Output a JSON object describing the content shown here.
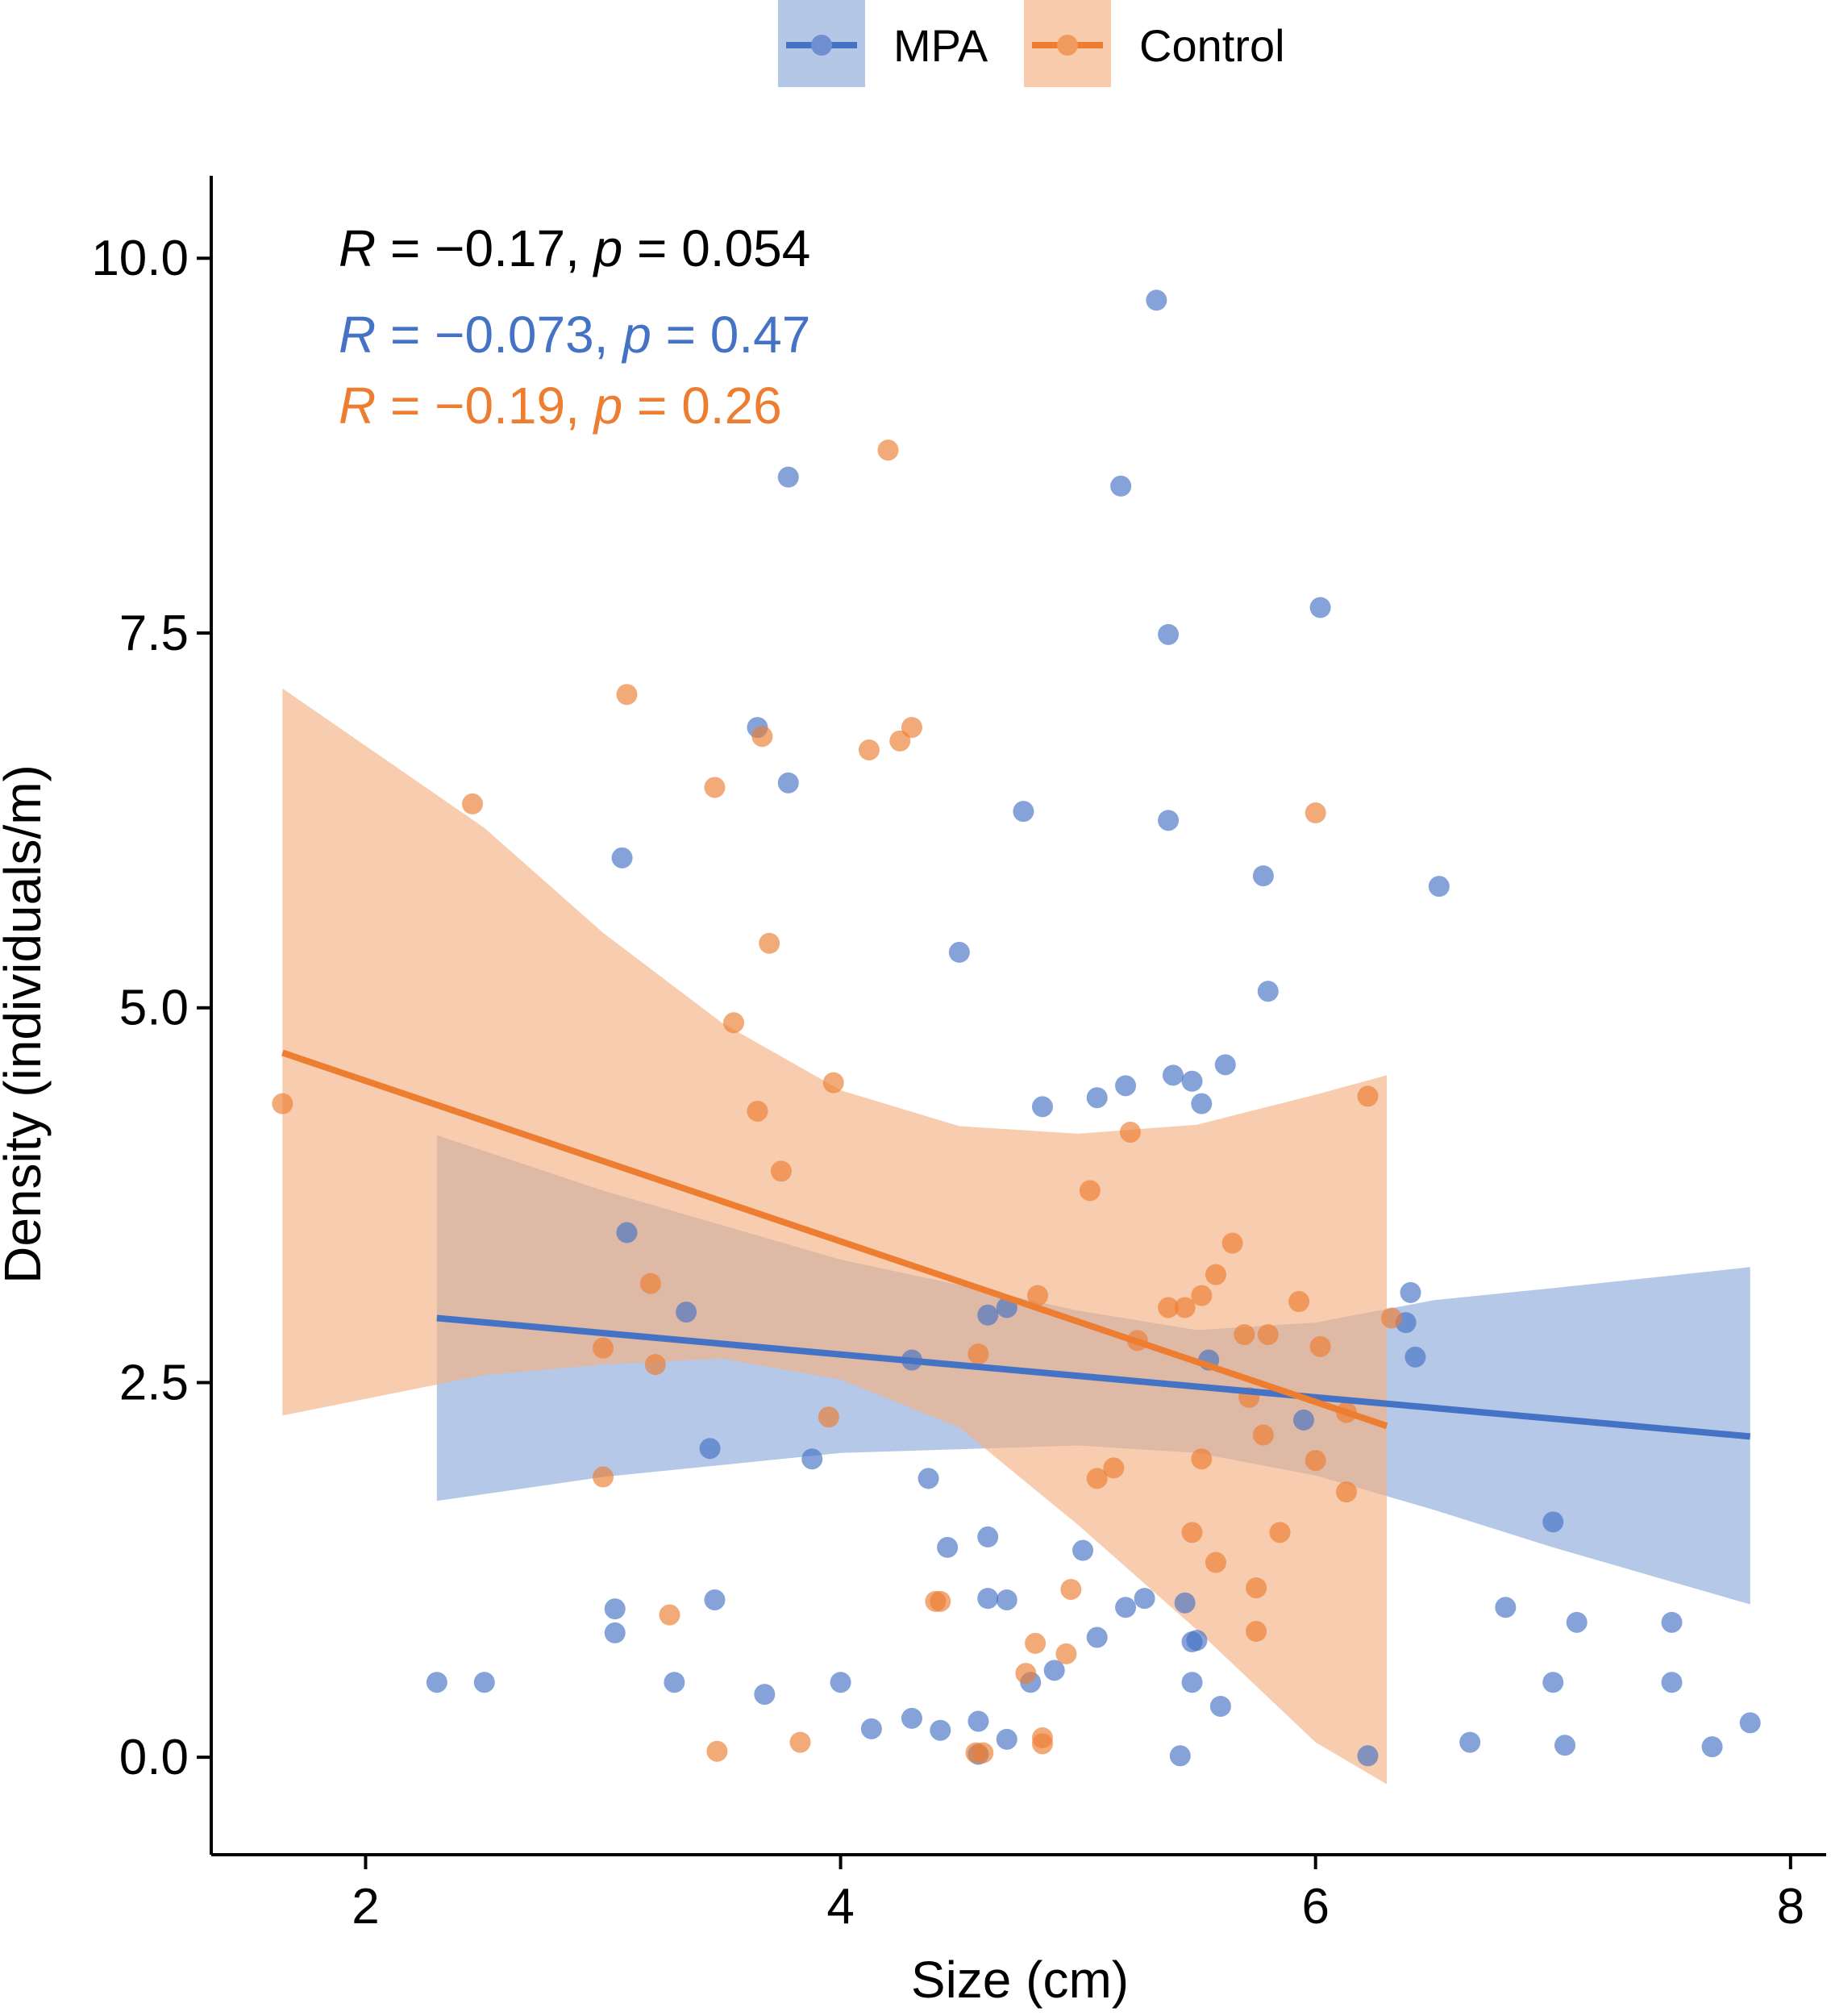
{
  "chart_data": {
    "type": "scatter",
    "xlabel": "Size (cm)",
    "ylabel": "Density (individuals/m)",
    "xlim": [
      1.35,
      8.15
    ],
    "ylim": [
      -0.65,
      10.55
    ],
    "xticks": [
      2,
      4,
      6,
      8
    ],
    "xtick_labels": [
      "2",
      "4",
      "6",
      "8"
    ],
    "yticks": [
      0,
      2.5,
      5,
      7.5,
      10
    ],
    "ytick_labels": [
      "0.0",
      "2.5",
      "5.0",
      "7.5",
      "10.0"
    ],
    "grid": false,
    "legend": {
      "placement": "top",
      "entries": [
        "MPA",
        "Control"
      ]
    },
    "colors": {
      "MPA": "#4472C4",
      "MPA_band": "#8faadc",
      "Control": "#ED7D31",
      "Control_band": "#f4b183",
      "overall": "#000000"
    },
    "annotations": [
      {
        "group": "overall",
        "r_label": "R",
        "r_text": " = −0.17, ",
        "p_label": "p",
        "p_text": " = 0.054"
      },
      {
        "group": "MPA",
        "r_label": "R",
        "r_text": " = −0.073, ",
        "p_label": "p",
        "p_text": " = 0.47"
      },
      {
        "group": "Control",
        "r_label": "R",
        "r_text": " = −0.19, ",
        "p_label": "p",
        "p_text": " = 0.26"
      }
    ],
    "series": [
      {
        "name": "MPA",
        "points": [
          [
            5.33,
            9.72
          ],
          [
            3.78,
            8.54
          ],
          [
            5.18,
            8.48
          ],
          [
            6.02,
            7.67
          ],
          [
            5.38,
            7.49
          ],
          [
            3.65,
            6.87
          ],
          [
            3.78,
            6.5
          ],
          [
            4.77,
            6.31
          ],
          [
            5.38,
            6.25
          ],
          [
            3.08,
            6.0
          ],
          [
            5.78,
            5.88
          ],
          [
            6.52,
            5.81
          ],
          [
            4.5,
            5.37
          ],
          [
            5.8,
            5.11
          ],
          [
            5.62,
            4.62
          ],
          [
            5.4,
            4.55
          ],
          [
            5.48,
            4.51
          ],
          [
            5.2,
            4.48
          ],
          [
            5.08,
            4.4
          ],
          [
            4.85,
            4.34
          ],
          [
            5.52,
            4.36
          ],
          [
            3.1,
            3.5
          ],
          [
            3.35,
            2.97
          ],
          [
            4.62,
            2.95
          ],
          [
            4.7,
            3.0
          ],
          [
            6.4,
            3.1
          ],
          [
            6.38,
            2.9
          ],
          [
            6.42,
            2.67
          ],
          [
            5.55,
            2.65
          ],
          [
            4.3,
            2.65
          ],
          [
            5.95,
            2.25
          ],
          [
            3.45,
            2.06
          ],
          [
            3.88,
            1.99
          ],
          [
            4.37,
            1.86
          ],
          [
            7.0,
            1.57
          ],
          [
            4.62,
            1.47
          ],
          [
            4.45,
            1.4
          ],
          [
            5.02,
            1.38
          ],
          [
            4.62,
            1.06
          ],
          [
            4.7,
            1.05
          ],
          [
            5.28,
            1.06
          ],
          [
            5.2,
            1.0
          ],
          [
            5.45,
            1.03
          ],
          [
            3.05,
            0.99
          ],
          [
            3.47,
            1.05
          ],
          [
            6.8,
            1.0
          ],
          [
            7.1,
            0.9
          ],
          [
            7.5,
            0.9
          ],
          [
            3.05,
            0.83
          ],
          [
            5.08,
            0.8
          ],
          [
            5.5,
            0.78
          ],
          [
            5.48,
            0.77
          ],
          [
            4.9,
            0.58
          ],
          [
            4.8,
            0.5
          ],
          [
            2.3,
            0.5
          ],
          [
            2.5,
            0.5
          ],
          [
            3.3,
            0.5
          ],
          [
            4.0,
            0.5
          ],
          [
            5.48,
            0.5
          ],
          [
            7.0,
            0.5
          ],
          [
            7.5,
            0.5
          ],
          [
            3.68,
            0.42
          ],
          [
            5.6,
            0.34
          ],
          [
            4.3,
            0.26
          ],
          [
            4.58,
            0.24
          ],
          [
            7.83,
            0.23
          ],
          [
            4.13,
            0.19
          ],
          [
            4.42,
            0.18
          ],
          [
            4.7,
            0.12
          ],
          [
            6.65,
            0.1
          ],
          [
            7.05,
            0.08
          ],
          [
            7.67,
            0.07
          ],
          [
            4.58,
            0.02
          ],
          [
            5.43,
            0.01
          ],
          [
            6.22,
            0.01
          ]
        ]
      },
      {
        "name": "Control",
        "points": [
          [
            4.2,
            8.72
          ],
          [
            3.1,
            7.09
          ],
          [
            4.3,
            6.87
          ],
          [
            3.67,
            6.81
          ],
          [
            4.25,
            6.78
          ],
          [
            4.12,
            6.72
          ],
          [
            3.47,
            6.47
          ],
          [
            2.45,
            6.36
          ],
          [
            6.0,
            6.3
          ],
          [
            3.7,
            5.43
          ],
          [
            3.55,
            4.9
          ],
          [
            3.97,
            4.5
          ],
          [
            1.65,
            4.36
          ],
          [
            6.22,
            4.41
          ],
          [
            3.65,
            4.31
          ],
          [
            5.22,
            4.17
          ],
          [
            3.75,
            3.91
          ],
          [
            5.05,
            3.78
          ],
          [
            5.65,
            3.43
          ],
          [
            5.58,
            3.22
          ],
          [
            3.2,
            3.16
          ],
          [
            5.52,
            3.08
          ],
          [
            4.83,
            3.08
          ],
          [
            5.93,
            3.04
          ],
          [
            5.38,
            3.0
          ],
          [
            5.45,
            3.0
          ],
          [
            6.32,
            2.93
          ],
          [
            5.7,
            2.82
          ],
          [
            5.8,
            2.82
          ],
          [
            5.25,
            2.78
          ],
          [
            6.02,
            2.74
          ],
          [
            3.0,
            2.73
          ],
          [
            4.58,
            2.69
          ],
          [
            3.22,
            2.62
          ],
          [
            5.72,
            2.4
          ],
          [
            6.13,
            2.3
          ],
          [
            3.95,
            2.27
          ],
          [
            5.78,
            2.15
          ],
          [
            5.52,
            1.99
          ],
          [
            6.0,
            1.98
          ],
          [
            5.15,
            1.93
          ],
          [
            5.08,
            1.86
          ],
          [
            3.0,
            1.87
          ],
          [
            6.13,
            1.77
          ],
          [
            5.48,
            1.5
          ],
          [
            5.85,
            1.5
          ],
          [
            5.58,
            1.3
          ],
          [
            4.97,
            1.12
          ],
          [
            5.75,
            1.13
          ],
          [
            4.4,
            1.04
          ],
          [
            4.42,
            1.04
          ],
          [
            3.28,
            0.95
          ],
          [
            5.75,
            0.84
          ],
          [
            4.82,
            0.76
          ],
          [
            4.95,
            0.69
          ],
          [
            4.78,
            0.56
          ],
          [
            4.85,
            0.13
          ],
          [
            4.85,
            0.09
          ],
          [
            3.83,
            0.1
          ],
          [
            3.48,
            0.04
          ],
          [
            4.57,
            0.03
          ],
          [
            4.6,
            0.03
          ]
        ]
      }
    ],
    "fits": [
      {
        "name": "MPA",
        "x_range": [
          2.3,
          7.83
        ],
        "line": [
          [
            2.3,
            2.93
          ],
          [
            7.83,
            2.14
          ]
        ],
        "band_upper": [
          [
            2.3,
            4.15
          ],
          [
            3.0,
            3.78
          ],
          [
            4.0,
            3.32
          ],
          [
            5.0,
            2.98
          ],
          [
            5.5,
            2.85
          ],
          [
            6.0,
            2.9
          ],
          [
            6.5,
            3.05
          ],
          [
            7.0,
            3.13
          ],
          [
            7.83,
            3.27
          ]
        ],
        "band_lower": [
          [
            2.3,
            1.71
          ],
          [
            3.0,
            1.87
          ],
          [
            4.0,
            2.03
          ],
          [
            5.0,
            2.08
          ],
          [
            5.5,
            2.03
          ],
          [
            6.0,
            1.88
          ],
          [
            6.5,
            1.65
          ],
          [
            7.0,
            1.4
          ],
          [
            7.83,
            1.02
          ]
        ]
      },
      {
        "name": "Control",
        "x_range": [
          1.65,
          6.3
        ],
        "line": [
          [
            1.65,
            4.7
          ],
          [
            6.3,
            2.21
          ]
        ],
        "band_upper": [
          [
            1.65,
            7.13
          ],
          [
            2.5,
            6.2
          ],
          [
            3.0,
            5.5
          ],
          [
            3.5,
            4.9
          ],
          [
            4.0,
            4.45
          ],
          [
            4.5,
            4.21
          ],
          [
            5.0,
            4.16
          ],
          [
            5.5,
            4.22
          ],
          [
            6.0,
            4.42
          ],
          [
            6.3,
            4.55
          ]
        ],
        "band_lower": [
          [
            1.65,
            2.28
          ],
          [
            2.5,
            2.55
          ],
          [
            3.0,
            2.62
          ],
          [
            3.5,
            2.66
          ],
          [
            4.0,
            2.52
          ],
          [
            4.5,
            2.2
          ],
          [
            5.0,
            1.55
          ],
          [
            5.5,
            0.85
          ],
          [
            6.0,
            0.1
          ],
          [
            6.3,
            -0.18
          ]
        ]
      }
    ]
  }
}
